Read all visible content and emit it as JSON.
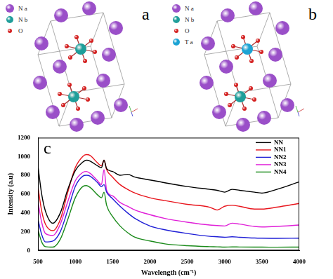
{
  "diagrams": [
    {
      "label": "a",
      "legend": [
        {
          "text": "N a",
          "color": "#9a4fc8"
        },
        {
          "text": "N b",
          "color": "#1f9e9a"
        },
        {
          "text": "O",
          "color": "#d42020"
        }
      ]
    },
    {
      "label": "b",
      "legend": [
        {
          "text": "N a",
          "color": "#9a4fc8"
        },
        {
          "text": "N b",
          "color": "#1f9e9a"
        },
        {
          "text": "O",
          "color": "#d42020"
        },
        {
          "text": "T a",
          "color": "#1ca3d4"
        }
      ]
    }
  ],
  "chart_data": {
    "type": "line",
    "annotations": [
      {
        "text": "c"
      }
    ],
    "x_label": "Wavelength (cm⁻¹)",
    "y_label": "Intensity (a.u)",
    "x": [
      500,
      550,
      600,
      700,
      800,
      900,
      1000,
      1100,
      1150,
      1200,
      1300,
      1350,
      1385,
      1420,
      1500,
      1600,
      1700,
      1800,
      2000,
      2200,
      2500,
      2800,
      2900,
      3000,
      3100,
      3200,
      3400,
      3500,
      3700,
      4000
    ],
    "series": [
      {
        "name": "NN",
        "color": "#000000",
        "values": [
          900,
          600,
          420,
          290,
          400,
          650,
          850,
          940,
          960,
          950,
          900,
          880,
          960,
          870,
          840,
          800,
          810,
          780,
          750,
          720,
          680,
          650,
          640,
          620,
          650,
          640,
          620,
          610,
          650,
          730
        ]
      },
      {
        "name": "NN1",
        "color": "#e8141c",
        "values": [
          680,
          420,
          280,
          210,
          330,
          620,
          880,
          1000,
          1020,
          1010,
          930,
          900,
          960,
          860,
          780,
          700,
          650,
          610,
          560,
          530,
          490,
          460,
          430,
          470,
          480,
          470,
          440,
          440,
          460,
          500
        ]
      },
      {
        "name": "NN2",
        "color": "#1f1fd6",
        "values": [
          330,
          170,
          90,
          100,
          200,
          430,
          680,
          790,
          800,
          790,
          720,
          680,
          700,
          620,
          550,
          470,
          400,
          340,
          260,
          220,
          180,
          150,
          145,
          140,
          145,
          140,
          132,
          130,
          128,
          130
        ]
      },
      {
        "name": "NN3",
        "color": "#e020d8",
        "values": [
          520,
          300,
          180,
          160,
          280,
          520,
          740,
          830,
          840,
          820,
          740,
          700,
          860,
          640,
          580,
          510,
          470,
          430,
          380,
          340,
          300,
          270,
          265,
          260,
          290,
          280,
          255,
          250,
          255,
          270
        ]
      },
      {
        "name": "NN4",
        "color": "#1a8a1a",
        "values": [
          220,
          90,
          40,
          35,
          120,
          330,
          560,
          680,
          690,
          670,
          590,
          560,
          620,
          480,
          360,
          260,
          190,
          140,
          100,
          70,
          50,
          40,
          38,
          35,
          37,
          36,
          35,
          35,
          34,
          35
        ]
      }
    ],
    "xlim": [
      500,
      4000
    ],
    "xticks": [
      500,
      1000,
      1500,
      2000,
      2500,
      3000,
      3500,
      4000
    ],
    "ylim": [
      0,
      1200
    ],
    "yticks": [
      0,
      200,
      400,
      600,
      800,
      1000,
      1200
    ],
    "grid": false,
    "legend": "upper right"
  }
}
